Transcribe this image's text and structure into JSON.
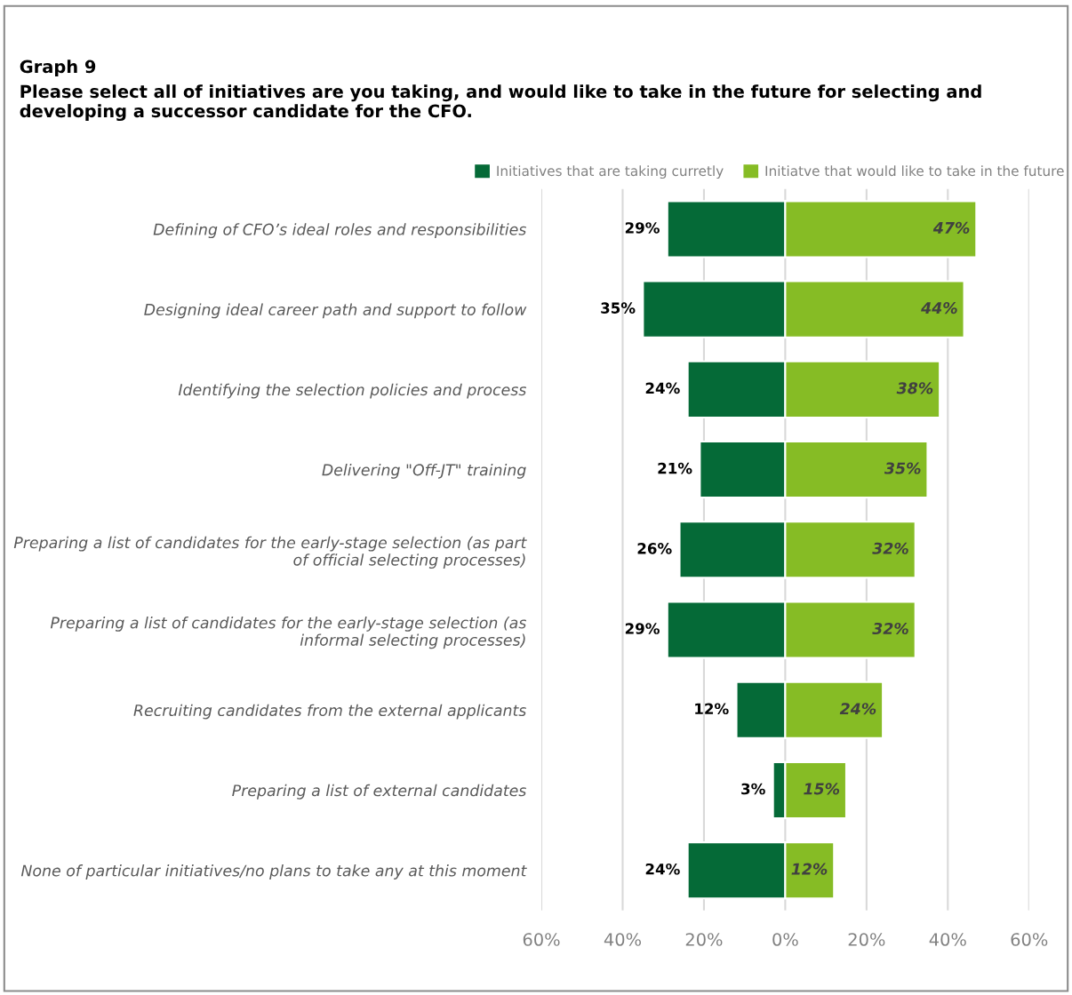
{
  "chart_data": {
    "type": "bar",
    "orientation": "horizontal",
    "title": "Graph 9",
    "subtitle": "Please select all of initiatives are you taking, and would like to take in the future for selecting and developing a successor candidate for the CFO.",
    "categories": [
      "Defining of CFO’s ideal roles and responsibilities",
      "Designing ideal career path and support to follow",
      "Identifying the selection policies and process",
      "Delivering \"Off-JT\" training",
      "Preparing a list of candidates for the early-stage selection (as part of official selecting processes)",
      "Preparing a list of candidates for the early-stage selection (as informal selecting processes)",
      "Recruiting candidates from the external applicants",
      "Preparing a list of external candidates",
      "None of particular initiatives/no plans to take any at this moment"
    ],
    "series": [
      {
        "name": "Initiatives that are taking curretly",
        "color": "#056a37",
        "values": [
          29,
          35,
          24,
          21,
          26,
          29,
          12,
          3,
          24
        ],
        "base": [
          -29,
          -35,
          -24,
          -21,
          -26,
          -29,
          -12,
          -3,
          -24
        ],
        "value_labels": [
          "29%",
          "35%",
          "24%",
          "21%",
          "26%",
          "29%",
          "12%",
          "3%",
          "24%"
        ]
      },
      {
        "name": "Initiatve that would like to take in the future",
        "color": "#86bc25",
        "values": [
          47,
          44,
          38,
          35,
          32,
          32,
          24,
          15,
          12
        ],
        "value_labels": [
          "47%",
          "44%",
          "38%",
          "35%",
          "32%",
          "32%",
          "24%",
          "15%",
          "12%"
        ]
      }
    ],
    "xlim": [
      -60,
      60
    ],
    "xticks": [
      {
        "value": -60,
        "label": "60%"
      },
      {
        "value": -40,
        "label": "40%"
      },
      {
        "value": -20,
        "label": "20%"
      },
      {
        "value": 0,
        "label": "0%"
      },
      {
        "value": 20,
        "label": "20%"
      },
      {
        "value": 40,
        "label": "40%"
      },
      {
        "value": 60,
        "label": "60%"
      }
    ],
    "grid": "x",
    "legend": "top"
  }
}
